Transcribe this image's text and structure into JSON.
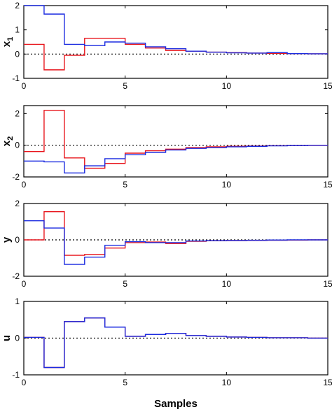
{
  "chart_data": [
    {
      "type": "line",
      "step": true,
      "ylabel": "x1",
      "ylabel_main": "x",
      "ylabel_sub": "1",
      "xlim": [
        0,
        15
      ],
      "ylim": [
        -1,
        2
      ],
      "xticks": [
        0,
        5,
        10,
        15
      ],
      "yticks": [
        -1,
        0,
        1,
        2
      ],
      "reference_line": 0,
      "series": [
        {
          "color": "#e8141b",
          "values": [
            0.4,
            -0.65,
            -0.05,
            0.65,
            0.65,
            0.4,
            0.25,
            0.15,
            0.12,
            0.08,
            0.06,
            0.04,
            0.03,
            0.02,
            0.01
          ]
        },
        {
          "color": "#1b2be0",
          "values": [
            2.0,
            1.65,
            0.4,
            0.35,
            0.5,
            0.45,
            0.3,
            0.22,
            0.12,
            0.08,
            0.05,
            0.04,
            0.06,
            0.02,
            0.01
          ]
        }
      ]
    },
    {
      "type": "line",
      "step": true,
      "ylabel": "x2",
      "ylabel_main": "x",
      "ylabel_sub": "2",
      "xlim": [
        0,
        15
      ],
      "ylim": [
        -2,
        2.5
      ],
      "xticks": [
        0,
        5,
        10,
        15
      ],
      "yticks": [
        -2,
        0,
        2
      ],
      "reference_line": 0,
      "series": [
        {
          "color": "#e8141b",
          "values": [
            -0.4,
            2.2,
            -0.8,
            -1.45,
            -1.15,
            -0.5,
            -0.35,
            -0.25,
            -0.15,
            -0.1,
            -0.07,
            -0.05,
            -0.03,
            -0.02,
            -0.01
          ]
        },
        {
          "color": "#1b2be0",
          "values": [
            -1.0,
            -1.05,
            -1.75,
            -1.3,
            -0.85,
            -0.6,
            -0.45,
            -0.3,
            -0.2,
            -0.15,
            -0.1,
            -0.07,
            -0.04,
            -0.02,
            0.0
          ]
        }
      ]
    },
    {
      "type": "line",
      "step": true,
      "ylabel": "y",
      "xlim": [
        0,
        15
      ],
      "ylim": [
        -2,
        2
      ],
      "xticks": [
        0,
        5,
        10,
        15
      ],
      "yticks": [
        -2,
        0,
        2
      ],
      "reference_line": 0,
      "series": [
        {
          "color": "#e8141b",
          "values": [
            0.0,
            1.55,
            -0.85,
            -0.8,
            -0.45,
            -0.15,
            -0.12,
            -0.2,
            -0.08,
            -0.05,
            -0.04,
            -0.03,
            -0.02,
            -0.01,
            0.0
          ]
        },
        {
          "color": "#1b2be0",
          "values": [
            1.05,
            0.65,
            -1.35,
            -0.95,
            -0.3,
            -0.1,
            -0.15,
            -0.15,
            -0.06,
            -0.04,
            -0.03,
            -0.02,
            -0.01,
            0.0,
            0.0
          ]
        }
      ]
    },
    {
      "type": "line",
      "step": true,
      "ylabel": "u",
      "xlabel": "Samples",
      "xlim": [
        0,
        15
      ],
      "ylim": [
        -1,
        1
      ],
      "xticks": [
        0,
        5,
        10,
        15
      ],
      "yticks": [
        -1,
        0,
        1
      ],
      "reference_line": 0,
      "series": [
        {
          "color": "#e8141b",
          "values": [
            0.02,
            -0.8,
            0.45,
            0.55,
            0.3,
            0.05,
            0.1,
            0.13,
            0.07,
            0.05,
            0.03,
            0.02,
            0.01,
            0.01,
            0.0
          ]
        },
        {
          "color": "#1b2be0",
          "values": [
            0.02,
            -0.8,
            0.45,
            0.55,
            0.3,
            0.05,
            0.1,
            0.13,
            0.07,
            0.05,
            0.03,
            0.02,
            0.01,
            0.01,
            0.0
          ]
        }
      ]
    }
  ]
}
